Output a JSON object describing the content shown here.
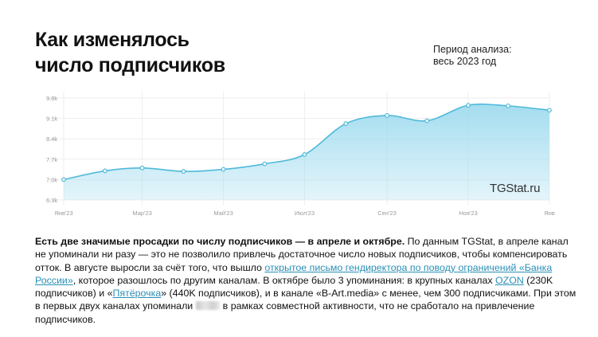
{
  "header": {
    "title_line1": "Как изменялось",
    "title_line2": "число подписчиков",
    "period_line1": "Период анализа:",
    "period_line2": "весь 2023 год"
  },
  "watermark": "TGStat.ru",
  "colors": {
    "line": "#4fb9d9",
    "fill": "#9fdbef",
    "grid": "#eeeeee",
    "tick": "#9a9a9a"
  },
  "chart_data": {
    "type": "area",
    "x": [
      "2023-01-01",
      "2023-02-01",
      "2023-03-01",
      "2023-04-01",
      "2023-05-01",
      "2023-06-01",
      "2023-07-01",
      "2023-08-01",
      "2023-09-01",
      "2023-10-01",
      "2023-11-01",
      "2023-12-01",
      "2024-01-01"
    ],
    "values": [
      7.0,
      7.3,
      7.4,
      7.28,
      7.35,
      7.54,
      7.86,
      8.92,
      9.2,
      9.02,
      9.55,
      9.53,
      9.38
    ],
    "x_ticks": [
      {
        "x": "2023-01-01",
        "label": "Янв'23"
      },
      {
        "x": "2023-03-01",
        "label": "Мар'23"
      },
      {
        "x": "2023-05-01",
        "label": "Май'23"
      },
      {
        "x": "2023-07-01",
        "label": "Июл'23"
      },
      {
        "x": "2023-09-01",
        "label": "Сен'23"
      },
      {
        "x": "2023-11-01",
        "label": "Ноя'23"
      },
      {
        "x": "2024-01-01",
        "label": "Янв"
      }
    ],
    "y_ticks": [
      6.3,
      7.0,
      7.7,
      8.4,
      9.1,
      9.8
    ],
    "y_tick_labels": [
      "6.3k",
      "7.0k",
      "7.7k",
      "8.4k",
      "9.1k",
      "9.8k"
    ],
    "ylim": [
      6.3,
      9.8
    ],
    "grid": true,
    "title": "",
    "xlabel": "",
    "ylabel": ""
  },
  "text": {
    "bold_lead": "Есть две значимые просадки по числу подписчиков — в апреле и октябре.",
    "t1": " По данным TGStat, в апреле канал не упоминали ни разу — это не позволило привлечь достаточное число новых подписчиков, чтобы компенсировать отток. В августе выросли за счёт того, что вышло ",
    "link1": "открытое письмо гендиректора по поводу ограничений «Банка России»",
    "t2": ", которое разошлось по другим каналам. В октябре было 3 упоминания: в крупных каналах ",
    "link2": "OZON",
    "t3": " (230K подписчиков) и «",
    "link3": "Пятёрочка",
    "t4": "» (440K подписчиков), и в канале «B-Art.media» с менее, чем 300 подписчиками. При этом в первых двух каналах упоминали ",
    "t5": "в рамках совместной активности, что не сработало на привлечение подписчиков."
  }
}
